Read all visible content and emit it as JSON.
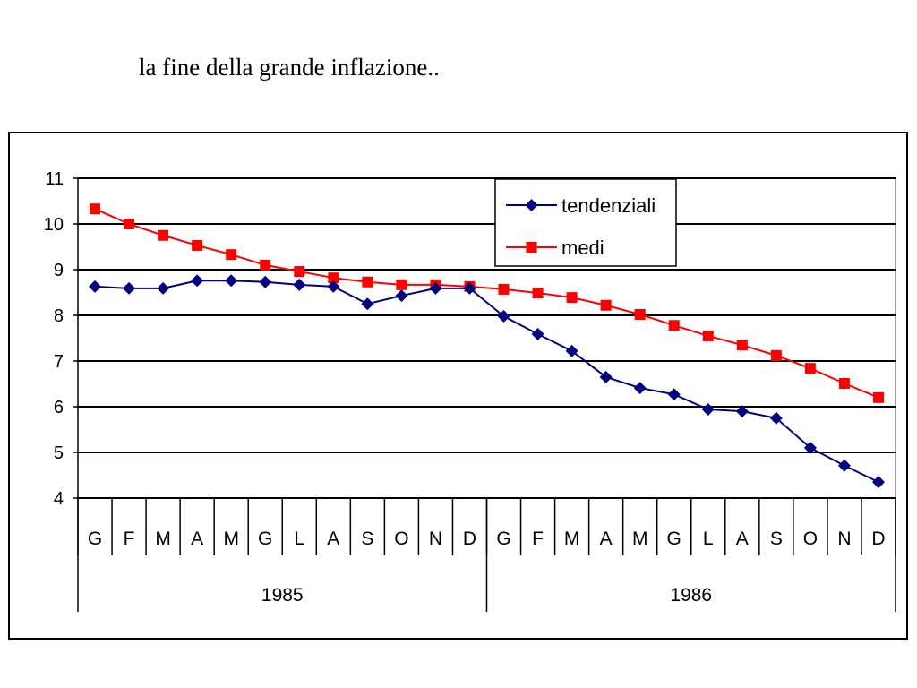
{
  "slide_title": "la fine della grande inflazione..",
  "chart_data": {
    "type": "line",
    "title": "",
    "xlabel": "",
    "ylabel": "",
    "ylim": [
      4,
      11
    ],
    "yticks": [
      "4",
      "5",
      "6",
      "7",
      "8",
      "9",
      "10",
      "11"
    ],
    "grid": true,
    "legend_position": "top-right",
    "categories": [
      "G",
      "F",
      "M",
      "A",
      "M",
      "G",
      "L",
      "A",
      "S",
      "O",
      "N",
      "D",
      "G",
      "F",
      "M",
      "A",
      "M",
      "G",
      "L",
      "A",
      "S",
      "O",
      "N",
      "D"
    ],
    "groups": [
      {
        "label": "1985",
        "count": 12
      },
      {
        "label": "1986",
        "count": 12
      }
    ],
    "series": [
      {
        "name": "tendenziali",
        "color": "#000080",
        "marker": "diamond",
        "values": [
          8.63,
          8.59,
          8.59,
          8.76,
          8.76,
          8.73,
          8.67,
          8.63,
          8.25,
          8.43,
          8.59,
          8.59,
          7.98,
          7.59,
          7.22,
          6.65,
          6.41,
          6.27,
          5.94,
          5.9,
          5.75,
          5.1,
          4.71,
          4.35
        ]
      },
      {
        "name": "medi",
        "color": "#ff0000",
        "marker": "square",
        "values": [
          10.33,
          10.0,
          9.75,
          9.53,
          9.33,
          9.1,
          8.96,
          8.82,
          8.73,
          8.67,
          8.67,
          8.63,
          8.57,
          8.49,
          8.39,
          8.22,
          8.02,
          7.78,
          7.55,
          7.35,
          7.12,
          6.84,
          6.51,
          6.2
        ]
      }
    ]
  }
}
